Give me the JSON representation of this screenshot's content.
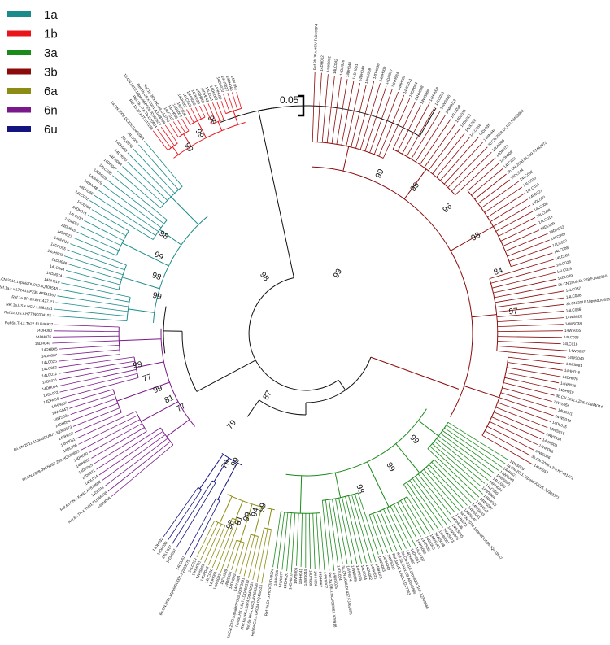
{
  "legend": [
    {
      "label": "1a",
      "color": "#1a8a8a"
    },
    {
      "label": "1b",
      "color": "#e8141a"
    },
    {
      "label": "3a",
      "color": "#1a8a1a"
    },
    {
      "label": "3b",
      "color": "#8b0a0a"
    },
    {
      "label": "6a",
      "color": "#8c8c14"
    },
    {
      "label": "6n",
      "color": "#7a1a8a"
    },
    {
      "label": "6u",
      "color": "#141480"
    }
  ],
  "scale_bar": {
    "label": "0.05"
  },
  "clades": [
    {
      "genotype": "1b",
      "tips": [
        "Ref.1b.JP.x.JT.D11168",
        "Ref.1b.JP.x.TN.D10934",
        "1b.CN.2010.10pwidGP026.JQ303557",
        "Ref.1b.US.x.Con1.AJ238799",
        "Ref.1b.JP.x.HC-J4.D10750",
        "14LC013",
        "14HH065",
        "14DL007",
        "14LC030",
        "14DH001",
        "14LC020",
        "14HH080",
        "14DH023",
        "14DH069",
        "14DH043",
        "14LC041",
        "14DH060",
        "14HH035",
        "14DH010",
        "14WS027",
        "14DH046",
        "14DL052"
      ],
      "supports": [
        "99",
        "99",
        "96"
      ]
    },
    {
      "genotype": "1a",
      "tips": [
        "Ref.1a.US.x.H77.NC004102",
        "Ref.1a.US.x.HCV-1.M62321",
        "Ref.1a.BR.03.BR1427.P1",
        "Ref.1a.x.x.LT24d.EF235.AF511950",
        "1a.CN.2010.10pwidDU065.JQ303548",
        "14DH010",
        "14DH074",
        "14LC044",
        "14DH046",
        "14DH003",
        "14DH055",
        "14DH016",
        "14DH027",
        "14DH045",
        "14DH057",
        "14LC010",
        "14DH071",
        "14DL003",
        "14LC022",
        "14DH066",
        "14DH048",
        "14DH079",
        "14DH028",
        "14LC030",
        "14DH047",
        "14DH058",
        "14DH070",
        "14DH068",
        "14LC033",
        "14LC007",
        "1a.CN.2008.DL235.FJ462953"
      ],
      "supports": [
        "99",
        "98",
        "99",
        "98"
      ]
    },
    {
      "genotype": "6n",
      "tips": [
        "14DH048",
        "Ref.6n.TH.x.TH31.EU246938",
        "14DL011",
        "Ref.6n.CN.x.KM42.AY878652",
        "14DL014",
        "14DL021",
        "14DH015",
        "14DH081",
        "14DH050",
        "6n.CN.2009.09CNJSZ.252.HQ228983",
        "14DL008",
        "14HH011",
        "14HH052",
        "6n.CN.2011.11pwidDU007.JQ303573",
        "14DH054",
        "14WS024",
        "14WS047",
        "14HH057",
        "14DH056",
        "14DL022",
        "14DH004",
        "14DL031",
        "14LC012",
        "14LC052",
        "14LC025",
        "14DH087",
        "14DH005",
        "14DH040",
        "14DH076",
        "14DH080",
        "Ref.6n.TH.x.Th22.EU246937"
      ],
      "supports": [
        "77",
        "81",
        "99",
        "77",
        "99"
      ]
    },
    {
      "genotype": "6u",
      "tips": [
        "Ref.6u.CN.x.D8.EU408328",
        "6u.CN.2011.11pwidDU001.JQ303575",
        "14LC051",
        "14DH036",
        "14DH037",
        "14LC017",
        "14DH030",
        "14DH032"
      ],
      "supports": [
        "99",
        "79"
      ]
    },
    {
      "genotype": "6a",
      "tips": [
        "Ref.6a.CN.x.GX004.DQ480513",
        "Ref.6a.HK.x.6a33.AY859526",
        "Ref.6a.HK.x.6a74.DQ480524",
        "Ref.6a.HK.x.6a77.DQ480512",
        "6a.CN.2010.10pwidGP003.JQ303591",
        "14DH084",
        "14DH065",
        "14WS056",
        "14DH089",
        "14WS083",
        "14DH061",
        "14LC002",
        "14DH043",
        "14WS059",
        "14HH003",
        "14LC019"
      ],
      "supports": [
        "99",
        "94",
        "99",
        "81",
        "98"
      ]
    },
    {
      "genotype": "3a",
      "tips": [
        "14WS029",
        "3a.CN.2011.11pwidDU015.JQ303571",
        "14HH021",
        "14WS049",
        "14WS085",
        "14LC040",
        "14HH034",
        "14LC050",
        "14WS064",
        "14DH013",
        "14WS087",
        "14HH012",
        "14WS033",
        "14WS031",
        "14WS049",
        "3a.CN.2010.10pwidDU106.JQ303567",
        "14HH072",
        "14DH006",
        "14WS035",
        "14WS005",
        "14WS073",
        "14HH082",
        "14WS058",
        "14WS065",
        "14DL003",
        "14WS061",
        "14WS062",
        "14DH007",
        "14DH051",
        "14DH059",
        "3a.CN.2010.10pwidDU107.JQ303568",
        "Ref.3a.CH.x.CB.AF046866",
        "Ref.3a.DE.x.NZL1.D17763",
        "14WS032",
        "14HH049",
        "14WS083",
        "14DH078",
        "14HH071",
        "14DH082",
        "14LC054",
        "14HH055",
        "14WS085",
        "14HH074",
        "3a.CN.2008.DL437.FJ462975",
        "14DL024",
        "14WS025",
        "Ref.3a.DE.x.HCVCENS1.X76918",
        "14WS007",
        "14DH062",
        "14HH052",
        "14DH035",
        "14WS044",
        "14HH041",
        "14WS009",
        "14DH010",
        "14DH020",
        "14WS077",
        "14HH026",
        "Ref.3a.CH.x.HCV-Tr.D49374"
      ],
      "supports": [
        "99",
        "99",
        "98"
      ]
    },
    {
      "genotype": "3b",
      "tips": [
        "Ref.3b.JP.x.HCV-Tr.D49374",
        "14DH012",
        "14WS032",
        "14LC042",
        "14DH026",
        "14DH040",
        "14DH061",
        "14DH049",
        "14HH059",
        "14DH008",
        "14DH003",
        "14DH007",
        "14HH084",
        "14HH035",
        "14WS011",
        "14DH084",
        "14HH038",
        "14WS069",
        "14HH008",
        "14LC036",
        "14WS030",
        "14WS013",
        "14LC039",
        "14DL035",
        "14DL013",
        "14DL018",
        "14LC054",
        "14DL035",
        "14HH044",
        "3b.CN.2008.DL100.FJ462993",
        "14DH005",
        "14DH073",
        "14DH008",
        "14LC031",
        "3b.CN.2008.DL399.FJ462972",
        "14DL044",
        "14LC032",
        "14LC015",
        "14LC013",
        "14LC023",
        "14DL050",
        "14LC008",
        "14LC028",
        "14LC014",
        "14DL039",
        "14DH052",
        "14LC049",
        "14LC022",
        "14LC008",
        "14LC005",
        "14LC023",
        "14LC029",
        "14DL039",
        "3b.CN.2008.DL228.FJ462950",
        "14LC037",
        "14LC038",
        "3b.CN.2010.10pwidDU095.JQ303582",
        "14LC036",
        "14WS020",
        "14WS038",
        "14WS065",
        "14LC035",
        "14LC016",
        "14WS037",
        "14WS049",
        "14WS081",
        "14HH018",
        "14DH076",
        "14HH030",
        "14DH019",
        "3b.CN.2011.LZ08.KC844044",
        "14WS056",
        "14LC021",
        "14WS014",
        "14DL015",
        "14WS015",
        "14WS034",
        "14HH009",
        "14HH086",
        "14WS066",
        "3b.CN.2006.LZ-5.KC441471",
        "14HH053"
      ],
      "supports": [
        "99",
        "99",
        "96",
        "98",
        "84",
        "97"
      ]
    }
  ],
  "backbone_supports": [
    "99",
    "87",
    "98",
    "79"
  ]
}
